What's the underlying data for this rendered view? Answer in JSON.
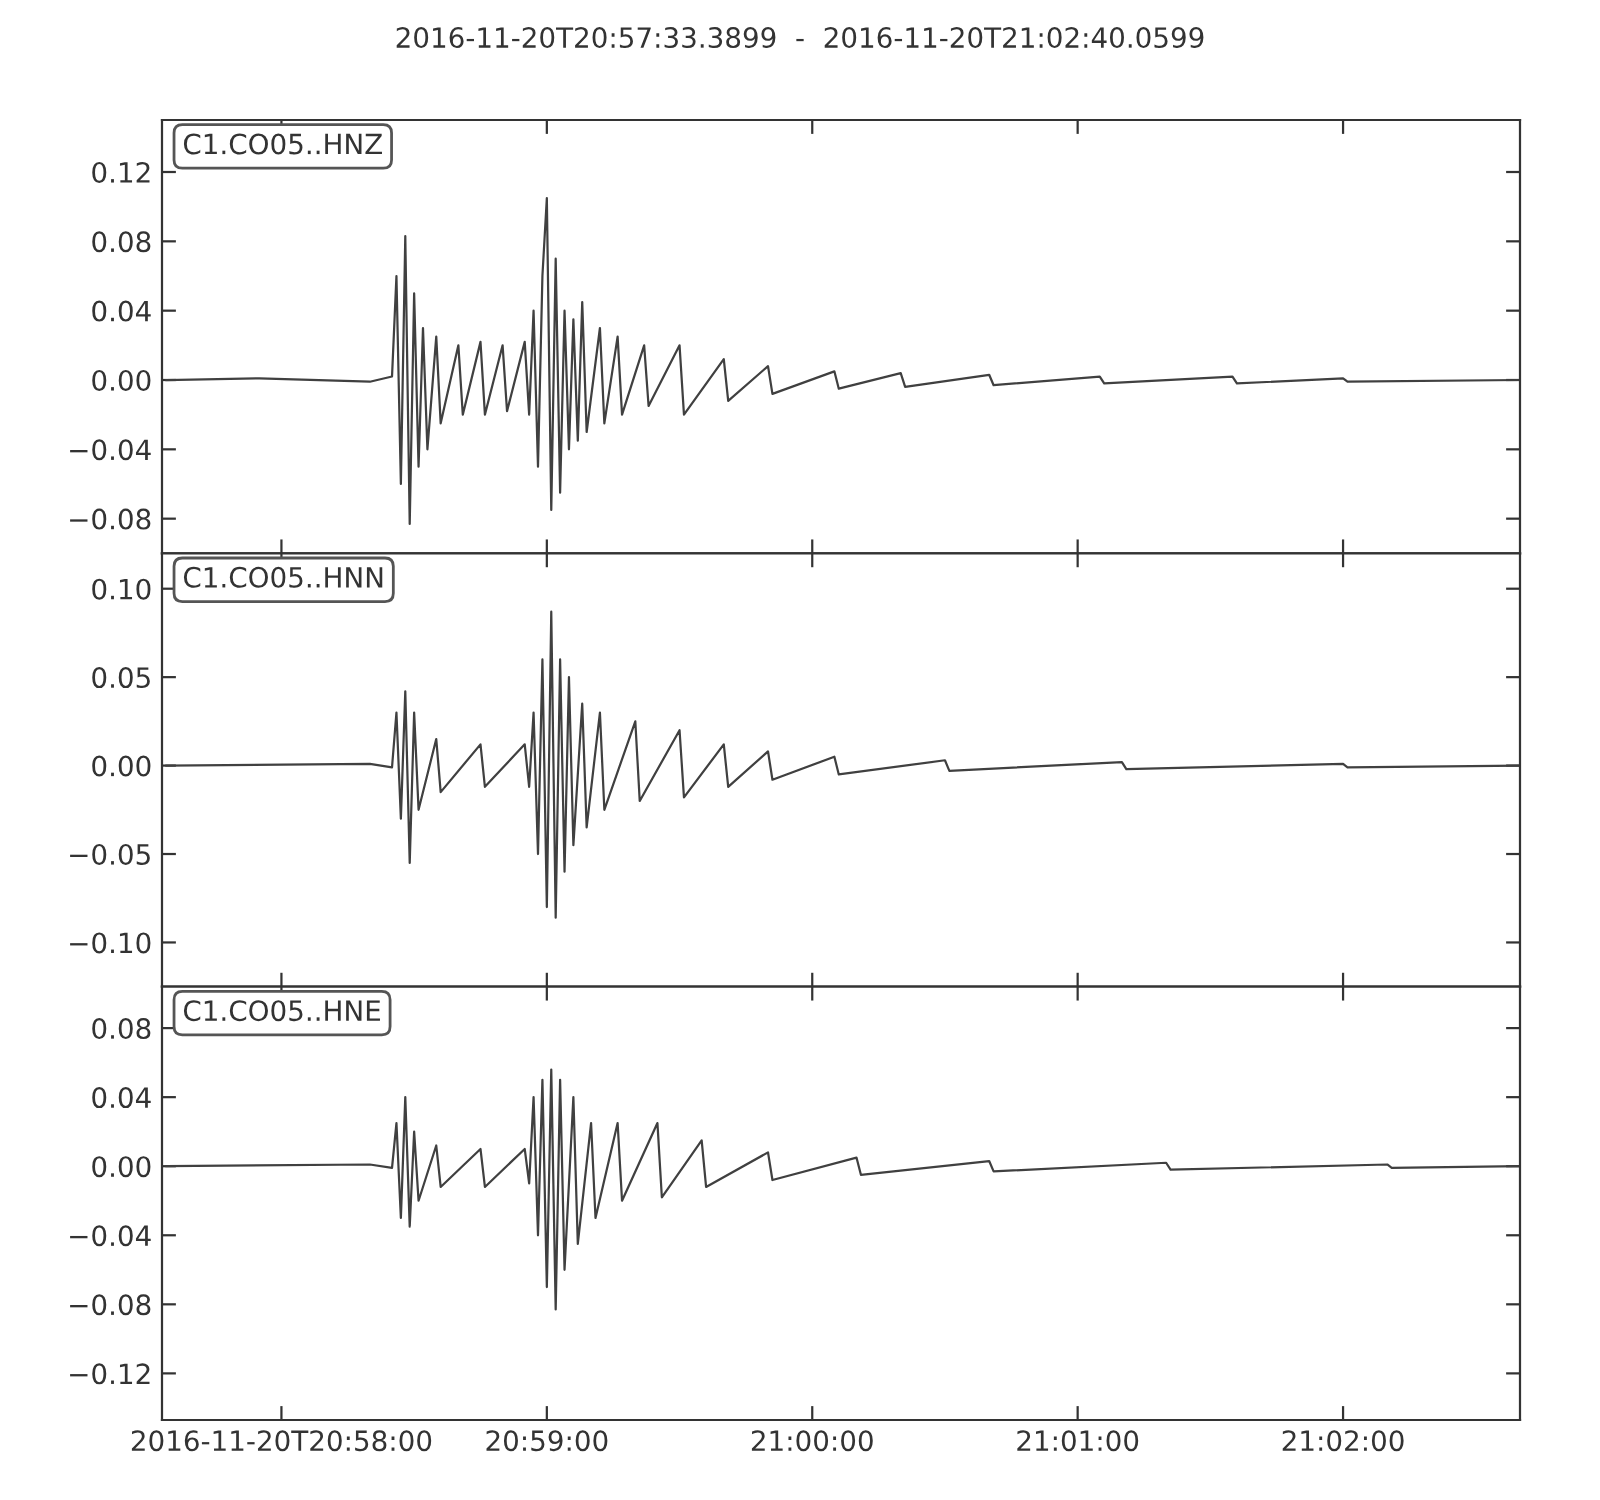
{
  "chart_data": [
    {
      "type": "line",
      "title": "2016-11-20T20:57:33.3899  -  2016-11-20T21:02:40.0599",
      "annotations": [
        "C1.CO05..HNZ"
      ],
      "color": "#404040",
      "tick_labels": "y",
      "grid": false,
      "legend": false,
      "marker": "none",
      "line_style": "solid",
      "x": [
        "2016-11-20T20:57:34",
        "2016-11-20T20:57:55",
        "2016-11-20T20:58:20",
        "2016-11-20T20:58:25",
        "2016-11-20T20:58:26",
        "2016-11-20T20:58:27",
        "2016-11-20T20:58:28",
        "2016-11-20T20:58:29",
        "2016-11-20T20:58:30",
        "2016-11-20T20:58:31",
        "2016-11-20T20:58:32",
        "2016-11-20T20:58:33",
        "2016-11-20T20:58:35",
        "2016-11-20T20:58:36",
        "2016-11-20T20:58:40",
        "2016-11-20T20:58:41",
        "2016-11-20T20:58:45",
        "2016-11-20T20:58:46",
        "2016-11-20T20:58:50",
        "2016-11-20T20:58:51",
        "2016-11-20T20:58:55",
        "2016-11-20T20:58:56",
        "2016-11-20T20:58:57",
        "2016-11-20T20:58:58",
        "2016-11-20T20:58:59",
        "2016-11-20T20:59:00",
        "2016-11-20T20:59:01",
        "2016-11-20T20:59:02",
        "2016-11-20T20:59:03",
        "2016-11-20T20:59:04",
        "2016-11-20T20:59:05",
        "2016-11-20T20:59:06",
        "2016-11-20T20:59:07",
        "2016-11-20T20:59:08",
        "2016-11-20T20:59:09",
        "2016-11-20T20:59:12",
        "2016-11-20T20:59:13",
        "2016-11-20T20:59:16",
        "2016-11-20T20:59:17",
        "2016-11-20T20:59:22",
        "2016-11-20T20:59:23",
        "2016-11-20T20:59:30",
        "2016-11-20T20:59:31",
        "2016-11-20T20:59:40",
        "2016-11-20T20:59:41",
        "2016-11-20T20:59:50",
        "2016-11-20T20:59:51",
        "2016-11-20T21:00:05",
        "2016-11-20T21:00:06",
        "2016-11-20T21:00:20",
        "2016-11-20T21:00:21",
        "2016-11-20T21:00:40",
        "2016-11-20T21:00:41",
        "2016-11-20T21:01:05",
        "2016-11-20T21:01:06",
        "2016-11-20T21:01:35",
        "2016-11-20T21:01:36",
        "2016-11-20T21:02:00",
        "2016-11-20T21:02:01",
        "2016-11-20T21:02:40"
      ],
      "values": [
        0,
        0.001,
        -0.001,
        0.002,
        0.06,
        -0.06,
        0.083,
        -0.083,
        0.05,
        -0.05,
        0.03,
        -0.04,
        0.025,
        -0.025,
        0.02,
        -0.02,
        0.022,
        -0.02,
        0.02,
        -0.018,
        0.022,
        -0.02,
        0.04,
        -0.05,
        0.06,
        0.105,
        -0.075,
        0.07,
        -0.065,
        0.04,
        -0.04,
        0.035,
        -0.035,
        0.045,
        -0.03,
        0.03,
        -0.025,
        0.025,
        -0.02,
        0.02,
        -0.015,
        0.02,
        -0.02,
        0.012,
        -0.012,
        0.008,
        -0.008,
        0.005,
        -0.005,
        0.004,
        -0.004,
        0.003,
        -0.003,
        0.002,
        -0.002,
        0.002,
        -0.002,
        0.001,
        -0.001,
        0
      ],
      "xlim": [
        "2016-11-20T20:57:33",
        "2016-11-20T21:02:40"
      ],
      "xticks": [
        {
          "value": "2016-11-20T20:58:00",
          "label": null
        },
        {
          "value": "2016-11-20T20:59:00",
          "label": null
        },
        {
          "value": "2016-11-20T21:00:00",
          "label": null
        },
        {
          "value": "2016-11-20T21:01:00",
          "label": null
        },
        {
          "value": "2016-11-20T21:02:00",
          "label": null
        }
      ],
      "ylim": [
        -0.1,
        0.15
      ],
      "yticks": [
        {
          "value": -0.08,
          "label": "−0.08"
        },
        {
          "value": -0.04,
          "label": "−0.04"
        },
        {
          "value": 0,
          "label": "0.00"
        },
        {
          "value": 0.04,
          "label": "0.04"
        },
        {
          "value": 0.08,
          "label": "0.08"
        },
        {
          "value": 0.12,
          "label": "0.12"
        }
      ]
    },
    {
      "type": "line",
      "annotations": [
        "C1.CO05..HNN"
      ],
      "color": "#404040",
      "tick_labels": "y",
      "grid": false,
      "legend": false,
      "marker": "none",
      "line_style": "solid",
      "x": [
        "2016-11-20T20:57:34",
        "2016-11-20T20:58:20",
        "2016-11-20T20:58:25",
        "2016-11-20T20:58:26",
        "2016-11-20T20:58:27",
        "2016-11-20T20:58:28",
        "2016-11-20T20:58:29",
        "2016-11-20T20:58:30",
        "2016-11-20T20:58:31",
        "2016-11-20T20:58:35",
        "2016-11-20T20:58:36",
        "2016-11-20T20:58:45",
        "2016-11-20T20:58:46",
        "2016-11-20T20:58:55",
        "2016-11-20T20:58:56",
        "2016-11-20T20:58:57",
        "2016-11-20T20:58:58",
        "2016-11-20T20:58:59",
        "2016-11-20T20:59:00",
        "2016-11-20T20:59:01",
        "2016-11-20T20:59:02",
        "2016-11-20T20:59:03",
        "2016-11-20T20:59:04",
        "2016-11-20T20:59:05",
        "2016-11-20T20:59:06",
        "2016-11-20T20:59:08",
        "2016-11-20T20:59:09",
        "2016-11-20T20:59:12",
        "2016-11-20T20:59:13",
        "2016-11-20T20:59:20",
        "2016-11-20T20:59:21",
        "2016-11-20T20:59:30",
        "2016-11-20T20:59:31",
        "2016-11-20T20:59:40",
        "2016-11-20T20:59:41",
        "2016-11-20T20:59:50",
        "2016-11-20T20:59:51",
        "2016-11-20T21:00:05",
        "2016-11-20T21:00:06",
        "2016-11-20T21:00:30",
        "2016-11-20T21:00:31",
        "2016-11-20T21:01:10",
        "2016-11-20T21:01:11",
        "2016-11-20T21:02:00",
        "2016-11-20T21:02:01",
        "2016-11-20T21:02:40"
      ],
      "values": [
        0,
        0.001,
        -0.001,
        0.03,
        -0.03,
        0.042,
        -0.055,
        0.03,
        -0.025,
        0.015,
        -0.015,
        0.012,
        -0.012,
        0.012,
        -0.012,
        0.03,
        -0.05,
        0.06,
        -0.08,
        0.087,
        -0.086,
        0.06,
        -0.06,
        0.05,
        -0.045,
        0.035,
        -0.035,
        0.03,
        -0.025,
        0.025,
        -0.02,
        0.02,
        -0.018,
        0.012,
        -0.012,
        0.008,
        -0.008,
        0.005,
        -0.005,
        0.003,
        -0.003,
        0.002,
        -0.002,
        0.001,
        -0.001,
        0
      ],
      "xlim": [
        "2016-11-20T20:57:33",
        "2016-11-20T21:02:40"
      ],
      "xticks": [
        {
          "value": "2016-11-20T20:58:00",
          "label": null
        },
        {
          "value": "2016-11-20T20:59:00",
          "label": null
        },
        {
          "value": "2016-11-20T21:00:00",
          "label": null
        },
        {
          "value": "2016-11-20T21:01:00",
          "label": null
        },
        {
          "value": "2016-11-20T21:02:00",
          "label": null
        }
      ],
      "ylim": [
        -0.125,
        0.12
      ],
      "yticks": [
        {
          "value": -0.1,
          "label": "−0.10"
        },
        {
          "value": -0.05,
          "label": "−0.05"
        },
        {
          "value": 0,
          "label": "0.00"
        },
        {
          "value": 0.05,
          "label": "0.05"
        },
        {
          "value": 0.1,
          "label": "0.10"
        }
      ]
    },
    {
      "type": "line",
      "annotations": [
        "C1.CO05..HNE"
      ],
      "color": "#404040",
      "grid": false,
      "legend": false,
      "marker": "none",
      "line_style": "solid",
      "x": [
        "2016-11-20T20:57:34",
        "2016-11-20T20:58:20",
        "2016-11-20T20:58:25",
        "2016-11-20T20:58:26",
        "2016-11-20T20:58:27",
        "2016-11-20T20:58:28",
        "2016-11-20T20:58:29",
        "2016-11-20T20:58:30",
        "2016-11-20T20:58:31",
        "2016-11-20T20:58:35",
        "2016-11-20T20:58:36",
        "2016-11-20T20:58:45",
        "2016-11-20T20:58:46",
        "2016-11-20T20:58:55",
        "2016-11-20T20:58:56",
        "2016-11-20T20:58:57",
        "2016-11-20T20:58:58",
        "2016-11-20T20:58:59",
        "2016-11-20T20:59:00",
        "2016-11-20T20:59:01",
        "2016-11-20T20:59:02",
        "2016-11-20T20:59:03",
        "2016-11-20T20:59:04",
        "2016-11-20T20:59:06",
        "2016-11-20T20:59:07",
        "2016-11-20T20:59:10",
        "2016-11-20T20:59:11",
        "2016-11-20T20:59:16",
        "2016-11-20T20:59:17",
        "2016-11-20T20:59:25",
        "2016-11-20T20:59:26",
        "2016-11-20T20:59:35",
        "2016-11-20T20:59:36",
        "2016-11-20T20:59:50",
        "2016-11-20T20:59:51",
        "2016-11-20T21:00:10",
        "2016-11-20T21:00:11",
        "2016-11-20T21:00:40",
        "2016-11-20T21:00:41",
        "2016-11-20T21:01:20",
        "2016-11-20T21:01:21",
        "2016-11-20T21:02:10",
        "2016-11-20T21:02:11",
        "2016-11-20T21:02:40"
      ],
      "values": [
        0,
        0.001,
        -0.001,
        0.025,
        -0.03,
        0.04,
        -0.035,
        0.02,
        -0.02,
        0.012,
        -0.012,
        0.01,
        -0.012,
        0.01,
        -0.01,
        0.04,
        -0.04,
        0.05,
        -0.07,
        0.056,
        -0.083,
        0.05,
        -0.06,
        0.04,
        -0.045,
        0.025,
        -0.03,
        0.025,
        -0.02,
        0.025,
        -0.018,
        0.015,
        -0.012,
        0.008,
        -0.008,
        0.005,
        -0.005,
        0.003,
        -0.003,
        0.002,
        -0.002,
        0.001,
        -0.001,
        0
      ],
      "xlim": [
        "2016-11-20T20:57:33",
        "2016-11-20T21:02:40"
      ],
      "xticks": [
        {
          "value": "2016-11-20T20:58:00",
          "label": "2016-11-20T20:58:00"
        },
        {
          "value": "2016-11-20T20:59:00",
          "label": "20:59:00"
        },
        {
          "value": "2016-11-20T21:00:00",
          "label": "21:00:00"
        },
        {
          "value": "2016-11-20T21:01:00",
          "label": "21:01:00"
        },
        {
          "value": "2016-11-20T21:02:00",
          "label": "21:02:00"
        }
      ],
      "ylim": [
        -0.147,
        0.104
      ],
      "yticks": [
        {
          "value": -0.12,
          "label": "−0.12"
        },
        {
          "value": -0.08,
          "label": "−0.08"
        },
        {
          "value": -0.04,
          "label": "−0.04"
        },
        {
          "value": 0,
          "label": "0.00"
        },
        {
          "value": 0.04,
          "label": "0.04"
        },
        {
          "value": 0.08,
          "label": "0.08"
        }
      ]
    }
  ]
}
